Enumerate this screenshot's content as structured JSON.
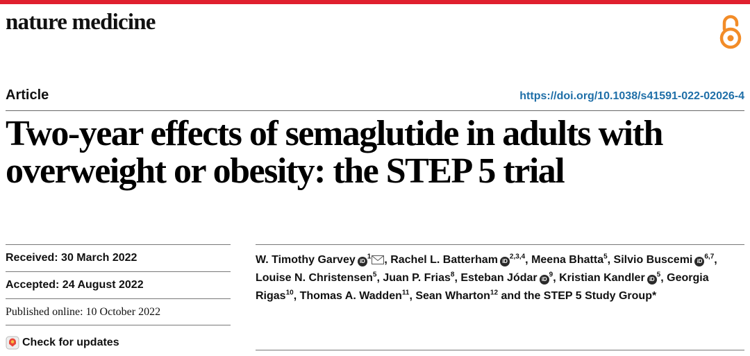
{
  "colors": {
    "accent_bar": "#e0202e",
    "oa_orange": "#f28c28",
    "doi_blue": "#1f6fa8"
  },
  "header": {
    "journal": "nature medicine",
    "open_access_icon": "open-access-lock-icon"
  },
  "meta": {
    "article_type": "Article",
    "doi": "https://doi.org/10.1038/s41591-022-02026-4"
  },
  "title": "Two-year effects of semaglutide in adults with overweight or obesity: the STEP 5 trial",
  "dates": {
    "received": "Received: 30 March 2022",
    "accepted": "Accepted: 24 August 2022",
    "published": "Published online: 10 October 2022"
  },
  "check_updates": "Check for updates",
  "orcid_label": "iD",
  "authors": [
    {
      "name": "W. Timothy Garvey",
      "orcid": true,
      "aff": "1",
      "email": true,
      "sep": ", "
    },
    {
      "name": "Rachel L. Batterham",
      "orcid": true,
      "aff": "2,3,4",
      "sep": ", "
    },
    {
      "name": "Meena Bhatta",
      "aff": "5",
      "sep": ", "
    },
    {
      "name": "Silvio Buscemi",
      "orcid": true,
      "aff": "6,7",
      "sep": ", "
    },
    {
      "name": "Louise N. Christensen",
      "aff": "5",
      "sep": ", "
    },
    {
      "name": "Juan P. Frias",
      "aff": "8",
      "sep": ", "
    },
    {
      "name": "Esteban Jódar",
      "orcid": true,
      "aff": "9",
      "sep": ", "
    },
    {
      "name": "Kristian Kandler",
      "orcid": true,
      "aff": "5",
      "sep": ", "
    },
    {
      "name": "Georgia Rigas",
      "aff": "10",
      "sep": ", "
    },
    {
      "name": "Thomas A. Wadden",
      "aff": "11",
      "sep": ", "
    },
    {
      "name": "Sean Wharton",
      "aff": "12",
      "sep": " "
    }
  ],
  "authors_tail": "and the STEP 5 Study Group*"
}
